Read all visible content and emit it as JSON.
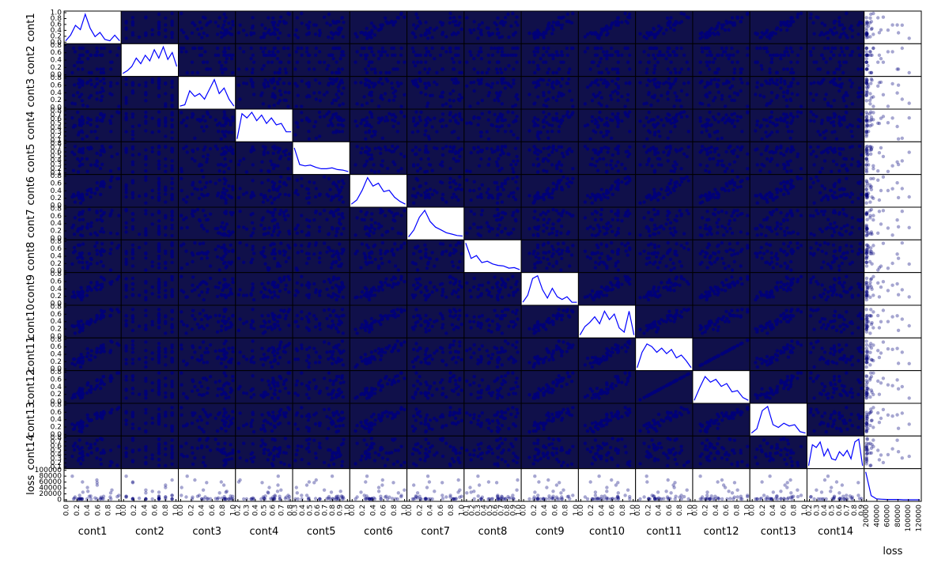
{
  "chart_data": {
    "type": "scatter",
    "variables": [
      "cont1",
      "cont2",
      "cont3",
      "cont4",
      "cont5",
      "cont6",
      "cont7",
      "cont8",
      "cont9",
      "cont10",
      "cont11",
      "cont12",
      "cont13",
      "cont14",
      "loss"
    ],
    "diagonal": "kde",
    "title": "",
    "x_tick_labels": [
      [
        "0.0",
        "0.2",
        "0.4",
        "0.6",
        "0.8",
        "1.0"
      ],
      [
        "0.0",
        "0.2",
        "0.4",
        "0.6",
        "0.8",
        "1.0"
      ],
      [
        "0.0",
        "0.2",
        "0.4",
        "0.6",
        "0.8",
        "1.0"
      ],
      [
        "0.2",
        "0.3",
        "0.4",
        "0.5",
        "0.6",
        "0.7",
        "0.8"
      ],
      [
        "0.3",
        "0.4",
        "0.5",
        "0.6",
        "0.7",
        "0.8",
        "0.9",
        "1.0"
      ],
      [
        "0.0",
        "0.2",
        "0.4",
        "0.6",
        "0.8",
        "1.0"
      ],
      [
        "0.0",
        "0.2",
        "0.4",
        "0.6",
        "0.8",
        "1.0"
      ],
      [
        "0.1",
        "0.2",
        "0.3",
        "0.4",
        "0.5",
        "0.6",
        "0.7",
        "0.8",
        "0.9",
        "1.0"
      ],
      [
        "0.0",
        "0.2",
        "0.4",
        "0.6",
        "0.8",
        "1.0"
      ],
      [
        "0.0",
        "0.2",
        "0.4",
        "0.6",
        "0.8",
        "1.0"
      ],
      [
        "0.0",
        "0.2",
        "0.4",
        "0.6",
        "0.8",
        "1.0"
      ],
      [
        "0.0",
        "0.2",
        "0.4",
        "0.6",
        "0.8",
        "1.0"
      ],
      [
        "0.0",
        "0.2",
        "0.4",
        "0.6",
        "0.8",
        "1.0"
      ],
      [
        "0.2",
        "0.3",
        "0.4",
        "0.5",
        "0.6",
        "0.7",
        "0.8",
        "0.9"
      ],
      [
        "20000",
        "40000",
        "60000",
        "80000",
        "100000",
        "120000"
      ]
    ],
    "y_tick_labels": [
      [
        "0.0",
        "0.2",
        "0.4",
        "0.6",
        "0.8",
        "1.0"
      ],
      [
        "0.0",
        "0.2",
        "0.4",
        "0.6",
        "0.8"
      ],
      [
        "0.0",
        "0.2",
        "0.4",
        "0.6",
        "0.8"
      ],
      [
        "0.1",
        "0.2",
        "0.3",
        "0.4",
        "0.5",
        "0.6",
        "0.7",
        "0.8"
      ],
      [
        "0.1",
        "0.2",
        "0.3",
        "0.4",
        "0.5",
        "0.6",
        "0.7",
        "0.8"
      ],
      [
        "0.0",
        "0.2",
        "0.4",
        "0.6",
        "0.8"
      ],
      [
        "0.0",
        "0.2",
        "0.4",
        "0.6",
        "0.8"
      ],
      [
        "0.0",
        "0.2",
        "0.4",
        "0.6",
        "0.8"
      ],
      [
        "0.0",
        "0.2",
        "0.4",
        "0.6",
        "0.8"
      ],
      [
        "0.0",
        "0.2",
        "0.4",
        "0.6",
        "0.8"
      ],
      [
        "0.0",
        "0.2",
        "0.4",
        "0.6",
        "0.8"
      ],
      [
        "0.0",
        "0.2",
        "0.4",
        "0.6",
        "0.8"
      ],
      [
        "0.0",
        "0.2",
        "0.4",
        "0.6",
        "0.8"
      ],
      [
        "0.1",
        "0.2",
        "0.3",
        "0.4",
        "0.5",
        "0.6",
        "0.7",
        "0.8"
      ],
      [
        "0",
        "20000",
        "40000",
        "60000",
        "80000",
        "100000"
      ]
    ],
    "kde_curves": [
      [
        0.05,
        0.25,
        0.6,
        0.45,
        1.0,
        0.5,
        0.2,
        0.35,
        0.1,
        0.05,
        0.25,
        0.05
      ],
      [
        0.05,
        0.15,
        0.3,
        0.6,
        0.4,
        0.7,
        0.5,
        0.9,
        0.6,
        1.0,
        0.55,
        0.8,
        0.3
      ],
      [
        0.05,
        0.1,
        0.6,
        0.4,
        0.5,
        0.3,
        0.65,
        1.0,
        0.5,
        0.7,
        0.3,
        0.05
      ],
      [
        0.05,
        0.95,
        0.8,
        1.0,
        0.7,
        0.9,
        0.6,
        0.8,
        0.55,
        0.6,
        0.3,
        0.3
      ],
      [
        0.9,
        0.3,
        0.25,
        0.28,
        0.2,
        0.15,
        0.15,
        0.18,
        0.12,
        0.1,
        0.05
      ],
      [
        0.05,
        0.2,
        0.55,
        1.0,
        0.7,
        0.8,
        0.5,
        0.55,
        0.3,
        0.15,
        0.05
      ],
      [
        0.05,
        0.3,
        0.75,
        1.0,
        0.6,
        0.4,
        0.3,
        0.2,
        0.15,
        0.1,
        0.08
      ],
      [
        1.0,
        0.45,
        0.55,
        0.3,
        0.35,
        0.25,
        0.2,
        0.18,
        0.1,
        0.12,
        0.05
      ],
      [
        0.05,
        0.3,
        0.9,
        1.0,
        0.5,
        0.2,
        0.55,
        0.25,
        0.15,
        0.25,
        0.05,
        0.05
      ],
      [
        0.05,
        0.35,
        0.5,
        0.7,
        0.45,
        0.9,
        0.6,
        0.8,
        0.3,
        0.15,
        0.9,
        0.05
      ],
      [
        0.05,
        0.6,
        0.9,
        0.8,
        0.6,
        0.75,
        0.55,
        0.7,
        0.4,
        0.5,
        0.3,
        0.05
      ],
      [
        0.05,
        0.5,
        0.9,
        0.7,
        0.8,
        0.55,
        0.65,
        0.35,
        0.4,
        0.15,
        0.05
      ],
      [
        0.05,
        0.2,
        0.85,
        1.0,
        0.35,
        0.25,
        0.4,
        0.3,
        0.35,
        0.1,
        0.05
      ],
      [
        0.05,
        0.8,
        0.7,
        0.9,
        0.4,
        0.65,
        0.3,
        0.25,
        0.55,
        0.4,
        0.6,
        0.3,
        0.9,
        1.0,
        0.05
      ],
      [
        1.0,
        0.15,
        0.03,
        0.02,
        0.01,
        0.01,
        0.01,
        0.0,
        0.0,
        0.0,
        0.0
      ]
    ],
    "colors": {
      "points": "#00007a",
      "kde": "#0000ff",
      "frame": "#000000"
    }
  }
}
